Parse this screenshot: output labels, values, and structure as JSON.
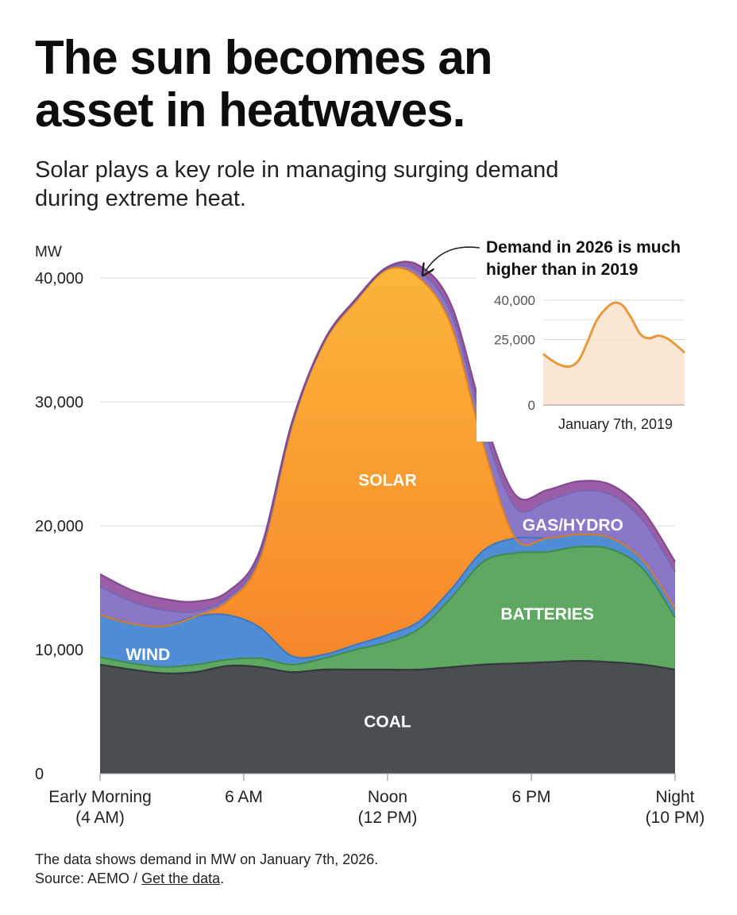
{
  "title": {
    "line1": "The sun becomes an",
    "line2": "asset in heatwaves."
  },
  "subtitle": {
    "line1": "Solar plays a key role in managing surging demand",
    "line2": "during extreme heat."
  },
  "footer": {
    "line1": "The data shows demand in MW on January 7th, 2026.",
    "source_prefix": "Source: AEMO / ",
    "link": "Get the data",
    "suffix": "."
  },
  "chart_data": [
    {
      "type": "area",
      "stacked": true,
      "title": "",
      "xlabel": "",
      "ylabel": "MW",
      "ylim": [
        0,
        40000
      ],
      "yticks": [
        0,
        10000,
        20000,
        30000,
        40000
      ],
      "ytick_labels": [
        "0",
        "10,000",
        "20,000",
        "30,000",
        "40,000"
      ],
      "xlim": [
        4,
        22
      ],
      "xticks": [
        4,
        8.5,
        13,
        17.5,
        22
      ],
      "xtick_labels": [
        {
          "line1": "Early Morning",
          "line2": "(4 AM)"
        },
        {
          "line1": "6 AM",
          "line2": ""
        },
        {
          "line1": "Noon",
          "line2": "(12 PM)"
        },
        {
          "line1": "6 PM",
          "line2": ""
        },
        {
          "line1": "Night",
          "line2": "(10 PM)"
        }
      ],
      "x": [
        4,
        5,
        6,
        7,
        8,
        9,
        10,
        11,
        12,
        13,
        14,
        15,
        16,
        17,
        18,
        19,
        20,
        21,
        22
      ],
      "series": [
        {
          "name": "COAL",
          "color": "#4a4d52",
          "values": [
            8800,
            8400,
            8100,
            8200,
            8700,
            8600,
            8200,
            8400,
            8400,
            8400,
            8400,
            8600,
            8800,
            8900,
            9000,
            9100,
            9000,
            8800,
            8400
          ]
        },
        {
          "name": "BATTERIES",
          "color": "#5fa863",
          "values": [
            600,
            500,
            500,
            600,
            500,
            700,
            600,
            900,
            1600,
            2200,
            3300,
            5600,
            8300,
            8900,
            8900,
            9200,
            9100,
            7700,
            4200
          ]
        },
        {
          "name": "WIND",
          "color": "#4f8dd6",
          "values": [
            3400,
            3200,
            3300,
            3900,
            3600,
            2500,
            700,
            300,
            400,
            600,
            600,
            700,
            900,
            1200,
            1100,
            1000,
            900,
            700,
            700
          ]
        },
        {
          "name": "SOLAR",
          "color": "#f89a2a",
          "values": [
            0,
            0,
            0,
            0,
            1100,
            5500,
            18500,
            25100,
            27700,
            29500,
            27700,
            21200,
            8500,
            0,
            0,
            0,
            0,
            0,
            0
          ]
        },
        {
          "name": "GAS/HYDRO",
          "color": "#8a77c8",
          "values": [
            2300,
            1800,
            1300,
            400,
            300,
            300,
            100,
            100,
            100,
            100,
            500,
            1000,
            1500,
            2500,
            3000,
            3500,
            3500,
            3200,
            3000
          ]
        },
        {
          "name": "",
          "color": "#9b5ea6",
          "values": [
            1000,
            900,
            900,
            800,
            500,
            400,
            200,
            100,
            100,
            100,
            500,
            700,
            900,
            1000,
            900,
            800,
            800,
            800,
            800
          ]
        }
      ],
      "annotations": [
        "SOLAR",
        "GAS/HYDRO",
        "BATTERIES",
        "WIND",
        "COAL"
      ]
    },
    {
      "type": "area",
      "title": "Demand in 2026 is much higher than in 2019",
      "xlabel": "January 7th, 2019",
      "ylabel": "",
      "ylim": [
        0,
        40000
      ],
      "yticks": [
        0,
        25000,
        40000
      ],
      "ytick_labels": [
        "0",
        "25,000",
        "40,000"
      ],
      "series": [
        {
          "name": "Demand 2019",
          "color": "#e8993c",
          "values": [
            19500,
            17000,
            15200,
            14700,
            17000,
            24000,
            32000,
            36500,
            39000,
            38000,
            33000,
            27000,
            25500,
            26500,
            25500,
            23000,
            20000
          ]
        }
      ]
    }
  ]
}
